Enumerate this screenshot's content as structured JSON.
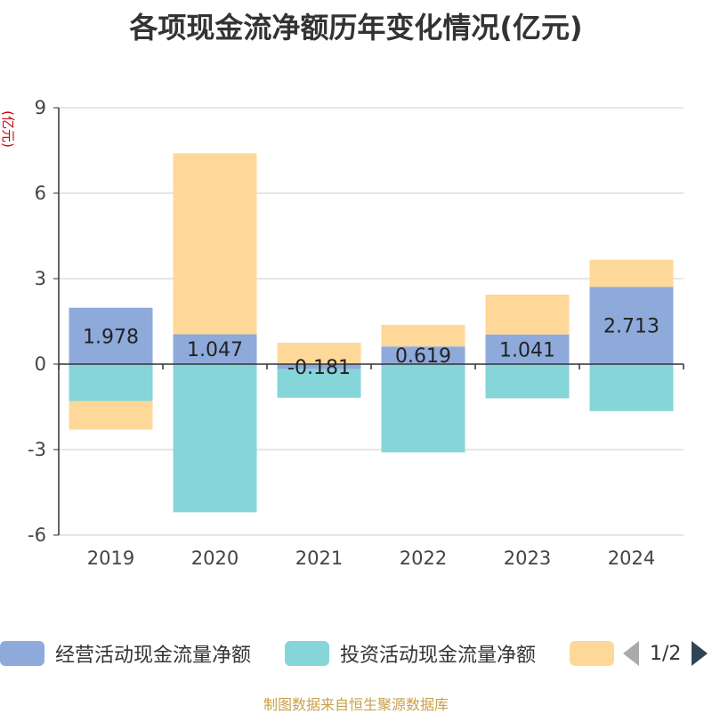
{
  "chart_data": {
    "type": "bar",
    "stacked": true,
    "title": "各项现金流净额历年变化情况(亿元)",
    "ylabel": "(亿元)",
    "categories": [
      "2019",
      "2020",
      "2021",
      "2022",
      "2023",
      "2024"
    ],
    "ylim": [
      -6,
      9
    ],
    "yticks": [
      -6,
      -3,
      0,
      3,
      6,
      9
    ],
    "grid": true,
    "legend_position": "bottom",
    "series": [
      {
        "name": "经营活动现金流量净额",
        "color": "#8eaadb",
        "values": [
          1.978,
          1.047,
          -0.181,
          0.619,
          1.041,
          2.713
        ],
        "labels": [
          "1.978",
          "1.047",
          "-0.181",
          "0.619",
          "1.041",
          "2.713"
        ]
      },
      {
        "name": "投资活动现金流量净额",
        "color": "#86d5d9",
        "values": [
          -1.3,
          -5.2,
          -1.0,
          -3.1,
          -1.2,
          -1.65
        ]
      },
      {
        "name": "",
        "color": "#fed898",
        "values": [
          -1.0,
          6.35,
          0.75,
          0.76,
          1.4,
          0.95
        ]
      }
    ]
  },
  "legend": {
    "items": [
      "经营活动现金流量净额",
      "投资活动现金流量净额",
      ""
    ],
    "page": "1/2"
  },
  "footer": {
    "source": "制图数据来自恒生聚源数据库"
  }
}
